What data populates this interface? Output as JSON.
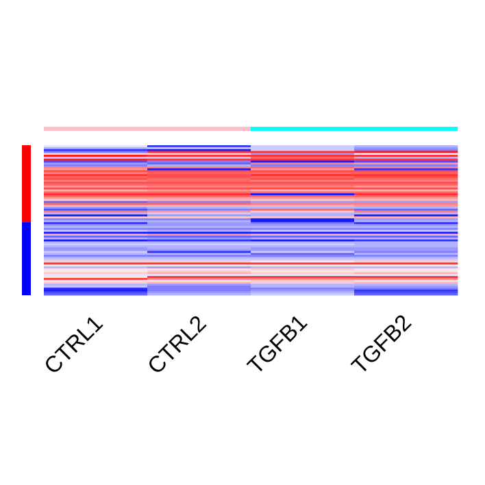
{
  "chart_data": {
    "type": "heatmap",
    "columns": [
      "CTRL1",
      "CTRL2",
      "TGFB1",
      "TGFB2"
    ],
    "column_groups": [
      {
        "columns": [
          "CTRL1",
          "CTRL2"
        ],
        "color": "#FFC0CB"
      },
      {
        "columns": [
          "TGFB1",
          "TGFB2"
        ],
        "color": "#00FFFF"
      }
    ],
    "row_groups": [
      {
        "rows": 40,
        "color": "#FF0000"
      },
      {
        "rows": 38,
        "color": "#0000FF"
      }
    ],
    "color_scale": {
      "low": "#0000FF",
      "mid": "#FFFFFF",
      "high": "#FF0000",
      "min": -1,
      "max": 1
    },
    "values": [
      [
        -0.1,
        -0.8,
        -0.2,
        -0.3
      ],
      [
        -0.3,
        -0.2,
        -0.2,
        -0.4
      ],
      [
        -0.8,
        -0.9,
        -0.2,
        -0.5
      ],
      [
        -0.5,
        0.8,
        0.8,
        0.9
      ],
      [
        0.2,
        0.2,
        -0.4,
        -0.1
      ],
      [
        0.9,
        0.8,
        0.8,
        0.8
      ],
      [
        -0.2,
        -0.2,
        0.6,
        -0.3
      ],
      [
        0.9,
        0.8,
        0.8,
        0.8
      ],
      [
        -0.7,
        -0.5,
        -0.9,
        -0.7
      ],
      [
        -0.4,
        -0.6,
        0.5,
        0.4
      ],
      [
        -0.5,
        -0.3,
        -0.5,
        -0.5
      ],
      [
        0.5,
        0.5,
        0.6,
        0.5
      ],
      [
        0.4,
        -0.9,
        0.4,
        -0.8
      ],
      [
        0.7,
        0.7,
        0.7,
        0.7
      ],
      [
        0.5,
        0.6,
        0.6,
        0.6
      ],
      [
        0.8,
        0.7,
        0.8,
        0.8
      ],
      [
        0.6,
        0.7,
        0.6,
        0.7
      ],
      [
        0.7,
        0.6,
        0.7,
        0.6
      ],
      [
        0.5,
        0.6,
        0.5,
        0.5
      ],
      [
        0.7,
        0.7,
        0.7,
        0.7
      ],
      [
        0.6,
        0.6,
        0.6,
        0.6
      ],
      [
        0.4,
        0.5,
        0.5,
        0.4
      ],
      [
        0.7,
        0.7,
        0.7,
        0.7
      ],
      [
        0.3,
        0.4,
        0.3,
        0.3
      ],
      [
        0.6,
        0.6,
        0.6,
        0.6
      ],
      [
        0.8,
        0.8,
        -0.9,
        0.8
      ],
      [
        0.6,
        0.6,
        0.6,
        0.6
      ],
      [
        0.4,
        0.4,
        0.4,
        0.4
      ],
      [
        0.2,
        0.3,
        0.2,
        0.3
      ],
      [
        -0.6,
        -0.5,
        -0.4,
        -0.4
      ],
      [
        0.6,
        0.6,
        0.5,
        0.5
      ],
      [
        0.3,
        0.3,
        0.3,
        0.4
      ],
      [
        -0.4,
        -0.3,
        -0.3,
        -0.3
      ],
      [
        -0.7,
        -0.5,
        0.6,
        -0.6
      ],
      [
        0.5,
        0.4,
        0.2,
        0.5
      ],
      [
        -0.3,
        -0.2,
        -0.3,
        -0.3
      ],
      [
        -0.9,
        -0.4,
        -0.3,
        -0.9
      ],
      [
        0.2,
        0.2,
        0.2,
        0.3
      ],
      [
        -0.5,
        -0.5,
        -0.9,
        -0.4
      ],
      [
        -0.3,
        -0.3,
        -0.9,
        -0.3
      ],
      [
        -0.8,
        -0.4,
        -0.5,
        -0.8
      ],
      [
        -0.4,
        -0.4,
        -0.4,
        -0.4
      ],
      [
        -0.3,
        -0.3,
        -0.3,
        -0.3
      ],
      [
        -0.5,
        -0.5,
        -0.5,
        -0.5
      ],
      [
        -0.2,
        -0.3,
        -0.2,
        -0.2
      ],
      [
        -0.9,
        -0.9,
        -0.9,
        -0.9
      ],
      [
        0.3,
        0.4,
        0.3,
        0.3
      ],
      [
        -0.6,
        -0.6,
        -0.6,
        -0.6
      ],
      [
        -0.3,
        -0.4,
        -0.3,
        -0.3
      ],
      [
        -0.9,
        -0.8,
        -0.9,
        -0.8
      ],
      [
        -0.3,
        -0.3,
        -0.3,
        -0.3
      ],
      [
        -0.2,
        -0.2,
        -0.2,
        -0.3
      ],
      [
        -0.3,
        -0.3,
        -0.3,
        -0.3
      ],
      [
        -0.4,
        -0.3,
        -0.4,
        -0.4
      ],
      [
        -0.4,
        -0.4,
        -0.4,
        -0.4
      ],
      [
        -0.2,
        -0.8,
        -0.2,
        -0.5
      ],
      [
        -0.3,
        -0.3,
        -0.6,
        -0.3
      ],
      [
        -0.5,
        -0.5,
        -0.5,
        -0.5
      ],
      [
        -0.3,
        -0.3,
        -0.3,
        -0.3
      ],
      [
        -0.2,
        -0.2,
        -0.2,
        -0.2
      ],
      [
        0.2,
        0.2,
        0.1,
        0.2
      ],
      [
        0.8,
        0.8,
        0.8,
        0.8
      ],
      [
        0.1,
        0.1,
        0.1,
        0.1
      ],
      [
        -0.3,
        -0.4,
        -0.3,
        -0.3
      ],
      [
        0.1,
        0.1,
        0.2,
        0.1
      ],
      [
        0.1,
        0.2,
        0.1,
        0.1
      ],
      [
        0.2,
        0.3,
        0.2,
        0.3
      ],
      [
        -0.1,
        -0.1,
        -0.1,
        -0.1
      ],
      [
        0.1,
        0.8,
        0.8,
        0.8
      ],
      [
        0.8,
        0.5,
        0.5,
        0.5
      ],
      [
        0.1,
        0.1,
        0.2,
        0.1
      ],
      [
        0.2,
        0.3,
        0.2,
        0.3
      ],
      [
        -0.3,
        -0.4,
        -0.3,
        -0.3
      ],
      [
        -0.2,
        -0.5,
        -0.3,
        -0.4
      ],
      [
        -0.8,
        -0.5,
        -0.5,
        -0.5
      ],
      [
        -0.9,
        -0.5,
        -0.4,
        -0.8
      ],
      [
        -0.7,
        -0.4,
        -0.3,
        -0.7
      ],
      [
        -0.6,
        -0.3,
        -0.2,
        -0.6
      ]
    ]
  }
}
